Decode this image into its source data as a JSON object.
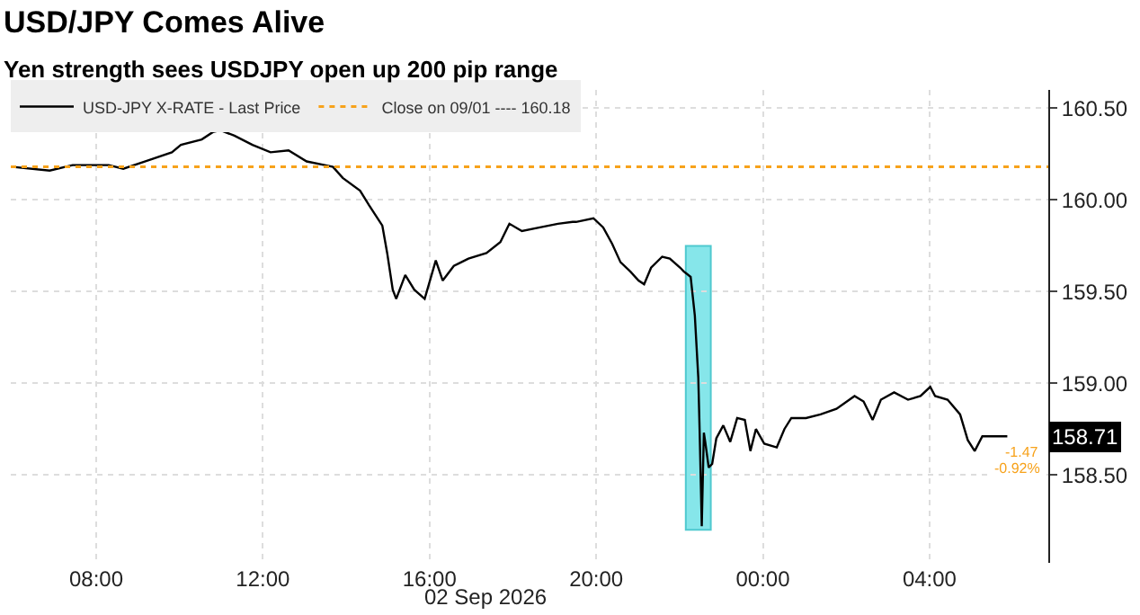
{
  "chart_data": {
    "type": "line",
    "title": "USD/JPY Comes Alive",
    "subtitle": "Yen strength sees USDJPY open up 200 pip range",
    "x": [
      "2026-09-02T06:00",
      "2026-09-02T06:53",
      "2026-09-02T07:26",
      "2026-09-02T08:18",
      "2026-09-02T08:39",
      "2026-09-02T09:10",
      "2026-09-02T09:49",
      "2026-09-02T10:02",
      "2026-09-02T10:32",
      "2026-09-02T10:48",
      "2026-09-02T10:59",
      "2026-09-02T11:19",
      "2026-09-02T11:45",
      "2026-09-02T12:11",
      "2026-09-02T12:37",
      "2026-09-02T13:03",
      "2026-09-02T13:29",
      "2026-09-02T13:41",
      "2026-09-02T13:55",
      "2026-09-02T14:20",
      "2026-09-02T14:33",
      "2026-09-02T14:52",
      "2026-09-02T14:59",
      "2026-09-02T15:07",
      "2026-09-02T15:12",
      "2026-09-02T15:25",
      "2026-09-02T15:38",
      "2026-09-02T15:53",
      "2026-09-02T16:09",
      "2026-09-02T16:19",
      "2026-09-02T16:35",
      "2026-09-02T16:56",
      "2026-09-02T17:22",
      "2026-09-02T17:42",
      "2026-09-02T17:55",
      "2026-09-02T18:13",
      "2026-09-02T18:39",
      "2026-09-02T19:05",
      "2026-09-02T19:26",
      "2026-09-02T19:31",
      "2026-09-02T19:56",
      "2026-09-02T20:10",
      "2026-09-02T20:23",
      "2026-09-02T20:35",
      "2026-09-02T20:49",
      "2026-09-02T21:01",
      "2026-09-02T21:09",
      "2026-09-02T21:19",
      "2026-09-02T21:35",
      "2026-09-02T21:46",
      "2026-09-02T22:01",
      "2026-09-02T22:06",
      "2026-09-02T22:16",
      "2026-09-02T22:22",
      "2026-09-02T22:27",
      "2026-09-02T22:29",
      "2026-09-02T22:32",
      "2026-09-02T22:35",
      "2026-09-02T22:37",
      "2026-09-02T22:42",
      "2026-09-02T22:47",
      "2026-09-02T22:53",
      "2026-09-02T23:03",
      "2026-09-02T23:13",
      "2026-09-02T23:23",
      "2026-09-02T23:34",
      "2026-09-02T23:42",
      "2026-09-02T23:50",
      "2026-09-03T00:02",
      "2026-09-03T00:20",
      "2026-09-03T00:31",
      "2026-09-03T00:41",
      "2026-09-03T01:02",
      "2026-09-03T01:23",
      "2026-09-03T01:46",
      "2026-09-03T02:12",
      "2026-09-03T02:25",
      "2026-09-03T02:38",
      "2026-09-03T02:50",
      "2026-09-03T03:09",
      "2026-09-03T03:29",
      "2026-09-03T03:47",
      "2026-09-03T04:01",
      "2026-09-03T04:08",
      "2026-09-03T04:26",
      "2026-09-03T04:44",
      "2026-09-03T04:55",
      "2026-09-03T05:05",
      "2026-09-03T05:16",
      "2026-09-03T05:31",
      "2026-09-03T05:52"
    ],
    "series": [
      {
        "name": "USD-JPY X-RATE - Last Price",
        "color": "#000000",
        "values": [
          160.18,
          160.16,
          160.19,
          160.19,
          160.17,
          160.21,
          160.26,
          160.3,
          160.33,
          160.37,
          160.38,
          160.35,
          160.3,
          160.26,
          160.27,
          160.21,
          160.19,
          160.18,
          160.12,
          160.05,
          159.97,
          159.86,
          159.71,
          159.51,
          159.46,
          159.59,
          159.51,
          159.46,
          159.67,
          159.56,
          159.64,
          159.68,
          159.71,
          159.77,
          159.87,
          159.83,
          159.85,
          159.87,
          159.88,
          159.88,
          159.9,
          159.85,
          159.76,
          159.66,
          159.61,
          159.56,
          159.54,
          159.63,
          159.69,
          159.68,
          159.63,
          159.61,
          159.58,
          159.37,
          159.03,
          158.73,
          158.22,
          158.73,
          158.68,
          158.54,
          158.56,
          158.7,
          158.77,
          158.68,
          158.81,
          158.8,
          158.63,
          158.75,
          158.67,
          158.65,
          158.75,
          158.81,
          158.81,
          158.83,
          158.86,
          158.93,
          158.9,
          158.8,
          158.91,
          158.95,
          158.91,
          158.93,
          158.98,
          158.93,
          158.91,
          158.83,
          158.69,
          158.63,
          158.71,
          158.71,
          158.71
        ]
      }
    ],
    "xlim": [
      "2026-09-02T05:57",
      "2026-09-03T06:51"
    ],
    "xticks": [
      {
        "value": "2026-09-02T08:00",
        "label": "08:00"
      },
      {
        "value": "2026-09-02T12:00",
        "label": "12:00"
      },
      {
        "value": "2026-09-02T16:00",
        "label": "16:00"
      },
      {
        "value": "2026-09-02T20:00",
        "label": "20:00"
      },
      {
        "value": "2026-09-03T00:00",
        "label": "00:00"
      },
      {
        "value": "2026-09-03T04:00",
        "label": "04:00"
      }
    ],
    "ylim": [
      158.02,
      160.6
    ],
    "yticks": [
      {
        "value": 158.5,
        "label": "158.50"
      },
      {
        "value": 159.0,
        "label": "159.00"
      },
      {
        "value": 159.5,
        "label": "159.50"
      },
      {
        "value": 160.0,
        "label": "160.00"
      },
      {
        "value": 160.5,
        "label": "160.50"
      }
    ],
    "ref_lines": [
      {
        "axis": "y",
        "value": 160.18,
        "label": "Close on 09/01 ---- 160.18",
        "color": "#f7a21b",
        "line_style": "dotted"
      }
    ],
    "bands": [
      {
        "axis": "x",
        "from": "2026-09-02T22:09",
        "to": "2026-09-02T22:45",
        "color": "#86e6ea"
      }
    ],
    "annotations": [
      "02 Sep 2026",
      "158.71",
      "-1.47",
      "-0.92%"
    ],
    "grid": true,
    "legend": "top left",
    "line_style": "solid",
    "marker": "none"
  }
}
